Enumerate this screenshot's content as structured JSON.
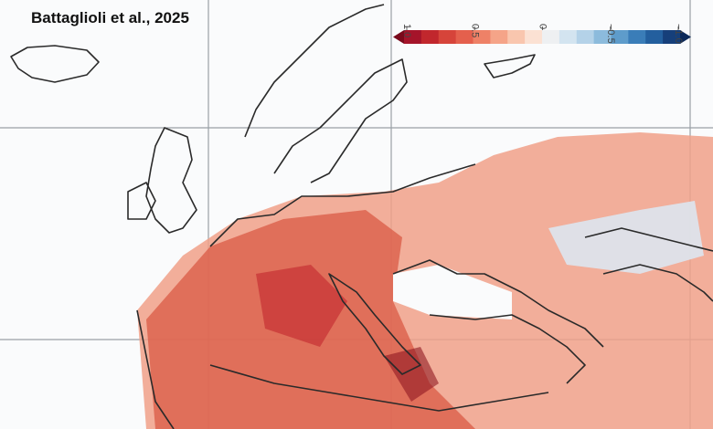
{
  "title": "Battaglioli et al., 2025",
  "colorbar": {
    "ticks": [
      {
        "value": 1,
        "label": "1.0"
      },
      {
        "value": 0.5,
        "label": "0.5"
      },
      0,
      {
        "value": -0.5,
        "label": "−0.5"
      },
      {
        "value": -1,
        "label": "−1.0"
      }
    ],
    "colors": [
      "#7a0a1c",
      "#a5142a",
      "#c1272d",
      "#d6443a",
      "#e4604d",
      "#ee8167",
      "#f5a488",
      "#f9c6ae",
      "#fbe1d3",
      "#eef0f2",
      "#d3e4f0",
      "#b4d2e8",
      "#8cbbdc",
      "#5e9ccb",
      "#3a7db8",
      "#235f9e",
      "#163f7a",
      "#0d2a5a"
    ]
  }
}
